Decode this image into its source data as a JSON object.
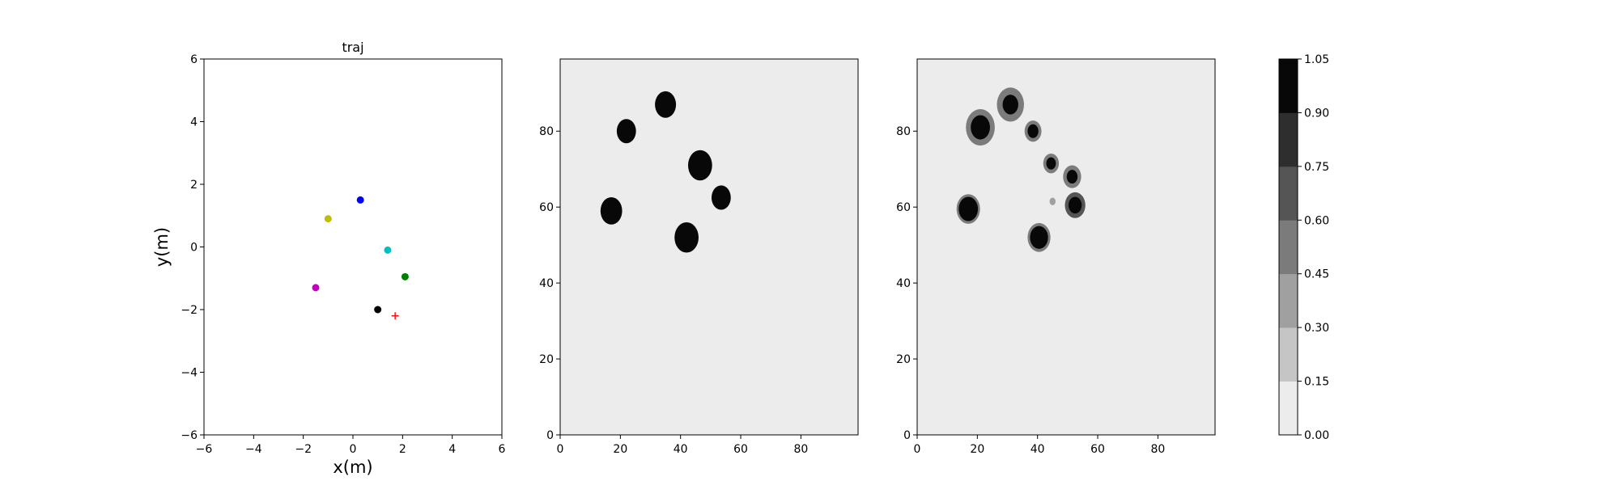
{
  "chart_data": [
    {
      "type": "scatter",
      "title": "traj",
      "xlabel": "x(m)",
      "ylabel": "y(m)",
      "xlim": [
        -6,
        6
      ],
      "ylim": [
        -6,
        6
      ],
      "x_ticks": [
        "−6",
        "−4",
        "−2",
        "0",
        "2",
        "4",
        "6"
      ],
      "y_ticks": [
        "−6",
        "−4",
        "−2",
        "0",
        "2",
        "4",
        "6"
      ],
      "grid": false,
      "points": [
        {
          "x": 0.3,
          "y": 1.5,
          "color": "#0000ff",
          "marker": "circle"
        },
        {
          "x": -1.0,
          "y": 0.9,
          "color": "#bfbf00",
          "marker": "circle"
        },
        {
          "x": 1.4,
          "y": -0.1,
          "color": "#00bfbf",
          "marker": "circle"
        },
        {
          "x": 2.1,
          "y": -0.95,
          "color": "#008000",
          "marker": "circle"
        },
        {
          "x": -1.5,
          "y": -1.3,
          "color": "#bf00bf",
          "marker": "circle"
        },
        {
          "x": 1.0,
          "y": -2.0,
          "color": "#000000",
          "marker": "circle"
        },
        {
          "x": 1.7,
          "y": -2.2,
          "color": "#ff0000",
          "marker": "plus"
        }
      ]
    },
    {
      "type": "heatmap",
      "title": "",
      "xlim": [
        0,
        99
      ],
      "ylim": [
        0,
        99
      ],
      "x_ticks": [
        "0",
        "20",
        "40",
        "60",
        "80"
      ],
      "y_ticks": [
        "0",
        "20",
        "40",
        "60",
        "80"
      ],
      "background_value": 0.0,
      "blobs": [
        {
          "cx": 35,
          "cy": 87,
          "r": 3.5,
          "value": 1.0
        },
        {
          "cx": 22,
          "cy": 80,
          "r": 3.2,
          "value": 1.0
        },
        {
          "cx": 46.5,
          "cy": 71,
          "r": 4.0,
          "value": 1.0
        },
        {
          "cx": 53.5,
          "cy": 62.5,
          "r": 3.2,
          "value": 1.0
        },
        {
          "cx": 17,
          "cy": 59,
          "r": 3.6,
          "value": 1.0
        },
        {
          "cx": 42,
          "cy": 52,
          "r": 4.0,
          "value": 1.0
        }
      ]
    },
    {
      "type": "heatmap",
      "title": "",
      "xlim": [
        0,
        99
      ],
      "ylim": [
        0,
        99
      ],
      "x_ticks": [
        "0",
        "20",
        "40",
        "60",
        "80"
      ],
      "y_ticks": [
        "0",
        "20",
        "40",
        "60",
        "80"
      ],
      "background_value": 0.0,
      "blobs": [
        {
          "cx": 31,
          "cy": 87,
          "r": 4.5,
          "value": 0.5
        },
        {
          "cx": 31,
          "cy": 87,
          "r": 2.6,
          "value": 0.95
        },
        {
          "cx": 21,
          "cy": 81,
          "r": 4.8,
          "value": 0.5
        },
        {
          "cx": 21,
          "cy": 81,
          "r": 3.2,
          "value": 1.0
        },
        {
          "cx": 38.5,
          "cy": 80,
          "r": 2.8,
          "value": 0.45
        },
        {
          "cx": 38.5,
          "cy": 80,
          "r": 1.8,
          "value": 0.95
        },
        {
          "cx": 44.5,
          "cy": 71.5,
          "r": 2.6,
          "value": 0.5
        },
        {
          "cx": 44.5,
          "cy": 71.5,
          "r": 1.6,
          "value": 0.95
        },
        {
          "cx": 51.5,
          "cy": 68,
          "r": 3.0,
          "value": 0.45
        },
        {
          "cx": 51.5,
          "cy": 68,
          "r": 1.8,
          "value": 0.95
        },
        {
          "cx": 52.5,
          "cy": 60.5,
          "r": 3.4,
          "value": 0.6
        },
        {
          "cx": 52.5,
          "cy": 60.5,
          "r": 2.2,
          "value": 1.0
        },
        {
          "cx": 45,
          "cy": 61.5,
          "r": 1.0,
          "value": 0.35
        },
        {
          "cx": 17,
          "cy": 59.5,
          "r": 3.9,
          "value": 0.5
        },
        {
          "cx": 17,
          "cy": 59.5,
          "r": 3.2,
          "value": 1.0
        },
        {
          "cx": 40.5,
          "cy": 52,
          "r": 3.8,
          "value": 0.55
        },
        {
          "cx": 40.5,
          "cy": 52,
          "r": 3.0,
          "value": 1.0
        }
      ]
    },
    {
      "type": "colorbar",
      "min": 0.0,
      "max": 1.05,
      "levels": [
        0.0,
        0.15,
        0.3,
        0.45,
        0.6,
        0.75,
        0.9,
        1.05
      ],
      "tick_labels": [
        "0.00",
        "0.15",
        "0.30",
        "0.45",
        "0.60",
        "0.75",
        "0.90",
        "1.05"
      ],
      "colors": [
        "#ececec",
        "#c5c5c5",
        "#a0a0a0",
        "#7b7b7b",
        "#555555",
        "#2e2e2e",
        "#080808"
      ]
    }
  ]
}
